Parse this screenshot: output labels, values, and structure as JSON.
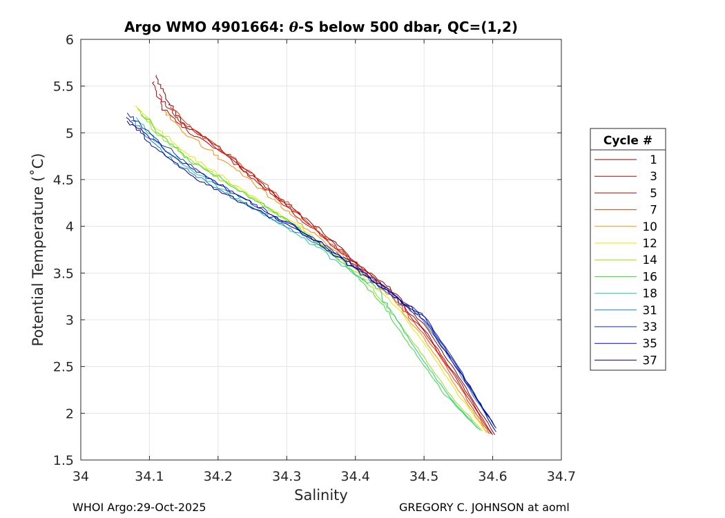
{
  "chart_data": {
    "type": "line",
    "title_parts": [
      "Argo WMO 4901664: ",
      "θ",
      "-S below 500 dbar,  QC=(1,2)"
    ],
    "xlabel": "Salinity",
    "ylabel": "Potential Temperature (˚C)",
    "xlim": [
      34.0,
      34.7
    ],
    "ylim": [
      1.5,
      6.0
    ],
    "xticks": [
      34.0,
      34.1,
      34.2,
      34.3,
      34.4,
      34.5,
      34.6,
      34.7
    ],
    "xtick_labels": [
      "34",
      "34.1",
      "34.2",
      "34.3",
      "34.4",
      "34.5",
      "34.6",
      "34.7"
    ],
    "yticks": [
      1.5,
      2.0,
      2.5,
      3.0,
      3.5,
      4.0,
      4.5,
      5.0,
      5.5,
      6.0
    ],
    "ytick_labels": [
      "1.5",
      "2",
      "2.5",
      "3",
      "3.5",
      "4",
      "4.5",
      "5",
      "5.5",
      "6"
    ],
    "grid": true,
    "legend": {
      "title": "Cycle #",
      "placement": "right"
    },
    "series": [
      {
        "name": "1",
        "color": "#8b0000",
        "S": [
          34.11,
          34.125,
          34.15,
          34.2,
          34.25,
          34.3,
          34.35,
          34.4,
          34.45,
          34.5,
          34.55,
          34.603
        ],
        "T": [
          5.62,
          5.35,
          5.1,
          4.85,
          4.55,
          4.25,
          3.95,
          3.62,
          3.35,
          2.95,
          2.4,
          1.77
        ]
      },
      {
        "name": "3",
        "color": "#b30000",
        "S": [
          34.105,
          34.12,
          34.16,
          34.21,
          34.255,
          34.3,
          34.35,
          34.4,
          34.45,
          34.5,
          34.55,
          34.6
        ],
        "T": [
          5.55,
          5.25,
          5.0,
          4.78,
          4.5,
          4.22,
          3.92,
          3.62,
          3.32,
          2.9,
          2.36,
          1.77
        ]
      },
      {
        "name": "5",
        "color": "#d40000",
        "S": [
          34.115,
          34.14,
          34.18,
          34.22,
          34.26,
          34.3,
          34.35,
          34.4,
          34.45,
          34.5,
          34.55,
          34.598
        ],
        "T": [
          5.4,
          5.15,
          4.95,
          4.7,
          4.45,
          4.2,
          3.9,
          3.6,
          3.3,
          2.88,
          2.33,
          1.78
        ]
      },
      {
        "name": "7",
        "color": "#ee3300",
        "S": [
          34.13,
          34.16,
          34.2,
          34.24,
          34.28,
          34.32,
          34.36,
          34.4,
          34.45,
          34.5,
          34.55,
          34.595
        ],
        "T": [
          5.3,
          5.05,
          4.85,
          4.62,
          4.38,
          4.12,
          3.85,
          3.58,
          3.28,
          2.85,
          2.3,
          1.78
        ]
      },
      {
        "name": "10",
        "color": "#ff8c00",
        "S": [
          34.12,
          34.15,
          34.19,
          34.23,
          34.27,
          34.31,
          34.35,
          34.4,
          34.45,
          34.5,
          34.55,
          34.592
        ],
        "T": [
          5.25,
          5.0,
          4.8,
          4.58,
          4.35,
          4.1,
          3.85,
          3.57,
          3.25,
          2.8,
          2.25,
          1.79
        ]
      },
      {
        "name": "12",
        "color": "#e6e600",
        "S": [
          34.08,
          34.11,
          34.15,
          34.2,
          34.25,
          34.3,
          34.35,
          34.4,
          34.45,
          34.5,
          34.55,
          34.59
        ],
        "T": [
          5.3,
          5.05,
          4.8,
          4.55,
          4.32,
          4.08,
          3.82,
          3.55,
          3.22,
          2.75,
          2.2,
          1.8
        ]
      },
      {
        "name": "14",
        "color": "#99e600",
        "S": [
          34.085,
          34.11,
          34.15,
          34.2,
          34.25,
          34.3,
          34.35,
          34.4,
          34.44,
          34.49,
          34.54,
          34.585
        ],
        "T": [
          5.25,
          5.0,
          4.75,
          4.52,
          4.3,
          4.06,
          3.8,
          3.52,
          3.2,
          2.7,
          2.18,
          1.81
        ]
      },
      {
        "name": "16",
        "color": "#33dd33",
        "S": [
          34.09,
          34.12,
          34.16,
          34.21,
          34.26,
          34.31,
          34.35,
          34.4,
          34.44,
          34.48,
          34.53,
          34.582
        ],
        "T": [
          5.2,
          4.95,
          4.7,
          4.48,
          4.25,
          4.02,
          3.78,
          3.5,
          3.15,
          2.72,
          2.2,
          1.82
        ]
      },
      {
        "name": "18",
        "color": "#20c9a0",
        "S": [
          34.08,
          34.11,
          34.15,
          34.2,
          34.25,
          34.3,
          34.35,
          34.4,
          34.43,
          34.46,
          34.5,
          34.54,
          34.58
        ],
        "T": [
          5.15,
          4.9,
          4.65,
          4.42,
          4.2,
          3.98,
          3.75,
          3.48,
          3.35,
          3.0,
          2.55,
          2.15,
          1.83
        ]
      },
      {
        "name": "31",
        "color": "#1a7acc",
        "S": [
          34.075,
          34.11,
          34.15,
          34.2,
          34.25,
          34.3,
          34.35,
          34.4,
          34.45,
          34.5,
          34.55,
          34.603
        ],
        "T": [
          5.15,
          4.85,
          4.62,
          4.4,
          4.2,
          4.0,
          3.78,
          3.55,
          3.28,
          2.98,
          2.45,
          1.82
        ]
      },
      {
        "name": "33",
        "color": "#0a2aa8",
        "S": [
          34.07,
          34.1,
          34.15,
          34.2,
          34.25,
          34.3,
          34.35,
          34.4,
          34.45,
          34.5,
          34.55,
          34.605
        ],
        "T": [
          5.2,
          5.0,
          4.7,
          4.45,
          4.25,
          4.05,
          3.82,
          3.58,
          3.3,
          3.05,
          2.5,
          1.8
        ]
      },
      {
        "name": "35",
        "color": "#0000cc",
        "S": [
          34.065,
          34.1,
          34.15,
          34.2,
          34.25,
          34.3,
          34.35,
          34.4,
          34.45,
          34.5,
          34.55,
          34.605
        ],
        "T": [
          5.18,
          4.95,
          4.68,
          4.45,
          4.24,
          4.04,
          3.82,
          3.57,
          3.3,
          3.02,
          2.48,
          1.84
        ]
      },
      {
        "name": "37",
        "color": "#00008b",
        "S": [
          34.07,
          34.1,
          34.15,
          34.2,
          34.25,
          34.3,
          34.35,
          34.4,
          34.45,
          34.5,
          34.55,
          34.603
        ],
        "T": [
          5.12,
          4.9,
          4.6,
          4.38,
          4.2,
          4.02,
          3.8,
          3.55,
          3.28,
          3.0,
          2.46,
          1.86
        ]
      }
    ]
  },
  "footer": {
    "left": "WHOI Argo:29-Oct-2025",
    "right": "GREGORY C. JOHNSON at aoml"
  }
}
